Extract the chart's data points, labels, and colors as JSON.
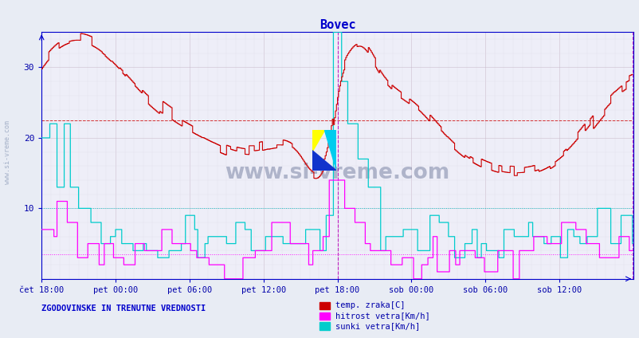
{
  "title": "Bovec",
  "title_color": "#0000cc",
  "bg_color": "#e8ecf4",
  "plot_bg_color": "#eeeef8",
  "grid_color_major": "#c8b8c8",
  "grid_color_minor": "#dcd8e8",
  "xlabel_color": "#0000aa",
  "ylabel_color": "#0000aa",
  "x_ticks_labels": [
    "čet 18:00",
    "pet 00:00",
    "pet 06:00",
    "pet 12:00",
    "pet 18:00",
    "sob 00:00",
    "sob 06:00",
    "sob 12:00"
  ],
  "x_tick_positions": [
    0,
    72,
    144,
    216,
    288,
    360,
    432,
    504
  ],
  "y_ticks": [
    10,
    20,
    30
  ],
  "ylim": [
    0,
    35
  ],
  "xlim": [
    0,
    576
  ],
  "n_points": 576,
  "hline_red_y": 22.5,
  "hline_cyan_y": 10.0,
  "hline_magenta_y": 3.5,
  "vline_x1": 288,
  "vline_x2": 575,
  "temp_color": "#cc0000",
  "hitrost_color": "#ff00ff",
  "sunki_color": "#00cccc",
  "watermark_text": "www.si-vreme.com",
  "watermark_color": "#2a3a6a",
  "watermark_alpha": 0.32,
  "footer_text": "ZGODOVINSKE IN TRENUTNE VREDNOSTI",
  "footer_color": "#0000cc",
  "legend_labels": [
    "temp. zraka[C]",
    "hitrost vetra[Km/h]",
    "sunki vetra[Km/h]"
  ],
  "legend_colors": [
    "#cc0000",
    "#ff00ff",
    "#00cccc"
  ],
  "axis_color": "#0000cc",
  "left_label": "www.si-vreme.com",
  "left_label_color": "#7788aa"
}
